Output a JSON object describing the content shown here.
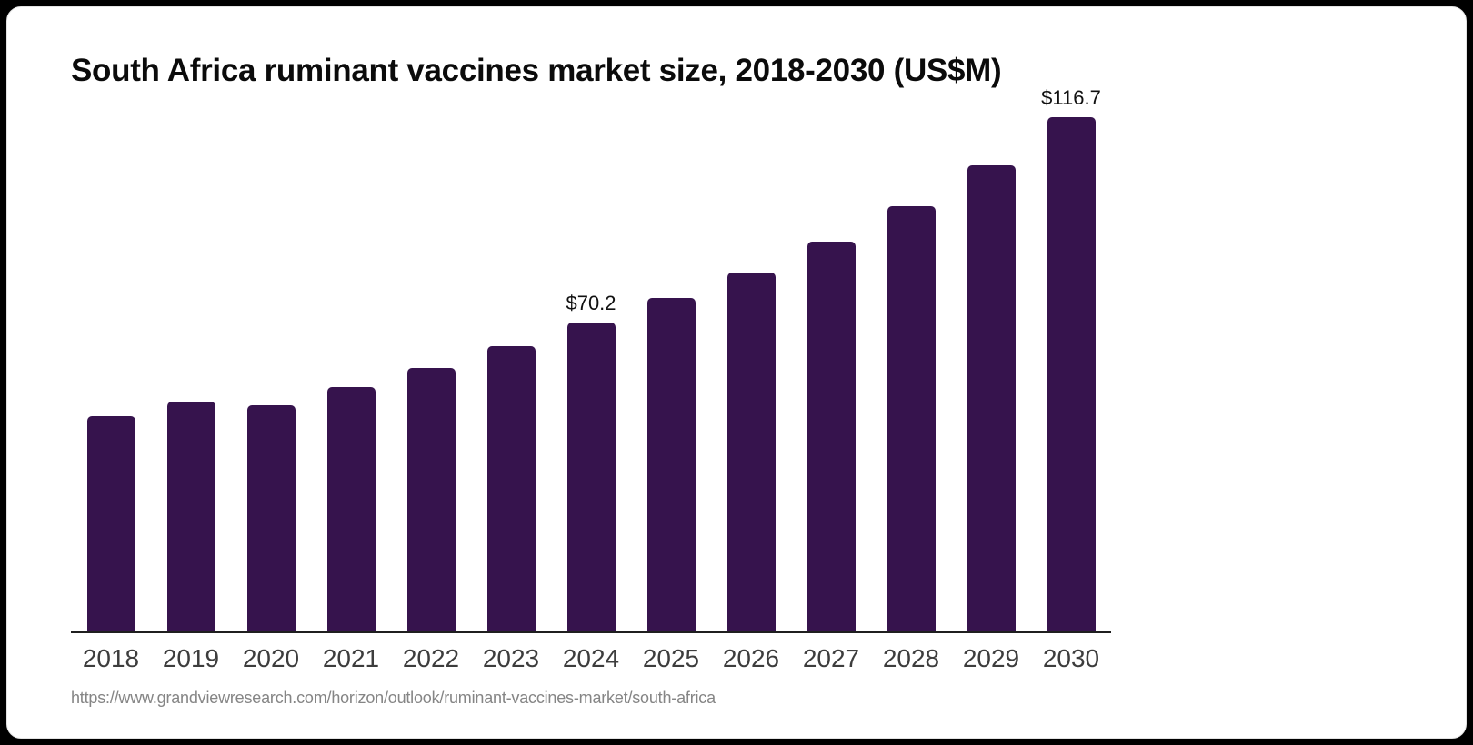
{
  "page": {
    "background_color": "#000000",
    "card_background_color": "#ffffff"
  },
  "chart_data": {
    "type": "bar",
    "title": "South Africa ruminant vaccines market size, 2018-2030 (US$M)",
    "categories": [
      "2018",
      "2019",
      "2020",
      "2021",
      "2022",
      "2023",
      "2024",
      "2025",
      "2026",
      "2027",
      "2028",
      "2029",
      "2030"
    ],
    "values": [
      48.9,
      52.2,
      51.4,
      55.5,
      59.8,
      64.8,
      70.2,
      75.7,
      81.5,
      88.5,
      96.5,
      105.8,
      116.7
    ],
    "data_labels": {
      "2024": "$70.2",
      "2030": "$116.7"
    },
    "bar_color": "#36134d",
    "axis_color": "#1f1f1f",
    "tick_label_color": "#3d3d3d",
    "value_label_color": "#111111",
    "xlabel": "",
    "ylabel": "",
    "ylim": [
      0,
      122.5
    ],
    "grid": false,
    "legend_position": "none"
  },
  "footer": {
    "source_url": "https://www.grandviewresearch.com/horizon/outlook/ruminant-vaccines-market/south-africa"
  }
}
